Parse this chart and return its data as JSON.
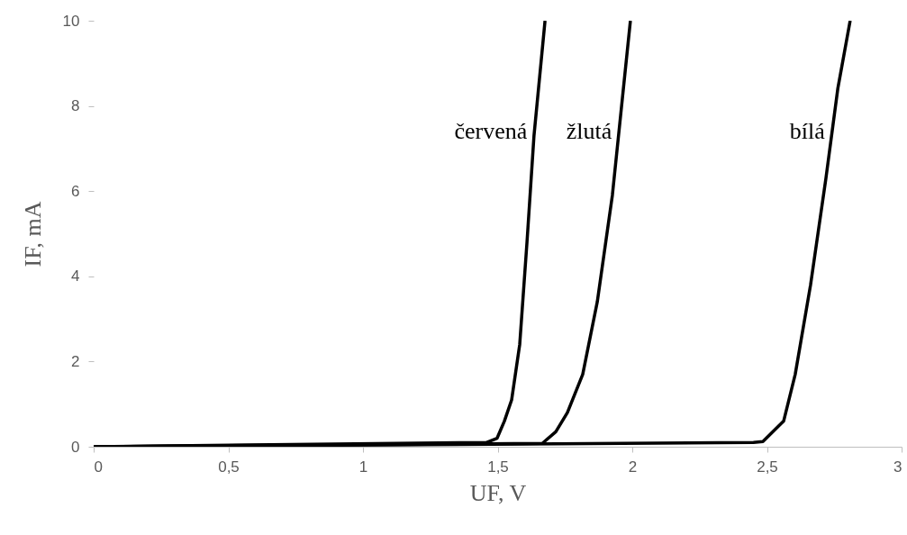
{
  "chart_data": {
    "type": "line",
    "xlabel": "UF, V",
    "ylabel": "IF, mA",
    "xlim": [
      0,
      3
    ],
    "ylim": [
      0,
      10
    ],
    "xticks": [
      0,
      {
        "value": 0.5,
        "label": "0,5"
      },
      1,
      {
        "value": 1.5,
        "label": "1,5"
      },
      2,
      {
        "value": 2.5,
        "label": "2,5"
      },
      3
    ],
    "yticks": [
      0,
      2,
      4,
      6,
      8,
      10
    ],
    "grid": false,
    "legend": false,
    "marker": "none",
    "line_style": "solid",
    "series": [
      {
        "name": "červená",
        "color": "#000000",
        "x": [
          0,
          1.458,
          1.498,
          1.525,
          1.552,
          1.582,
          1.609,
          1.635,
          1.676
        ],
        "values": [
          0,
          0.1,
          0.2,
          0.6,
          1.1,
          2.4,
          4.8,
          7.3,
          10
        ]
      },
      {
        "name": "žlutá",
        "color": "#000000",
        "x": [
          0,
          1.666,
          1.716,
          1.759,
          1.816,
          1.87,
          1.926,
          1.993
        ],
        "values": [
          0,
          0.08,
          0.35,
          0.8,
          1.7,
          3.4,
          5.9,
          10
        ]
      },
      {
        "name": "bílá",
        "color": "#000000",
        "x": [
          0,
          2.45,
          2.485,
          2.562,
          2.605,
          2.662,
          2.719,
          2.763,
          2.809
        ],
        "values": [
          0,
          0.1,
          0.12,
          0.6,
          1.7,
          3.8,
          6.3,
          8.4,
          10
        ]
      }
    ]
  }
}
